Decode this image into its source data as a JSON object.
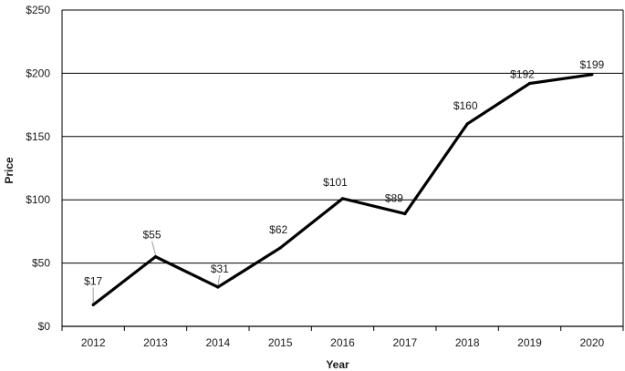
{
  "chart_data": {
    "type": "line",
    "title": "",
    "xlabel": "Year",
    "ylabel": "Price",
    "categories": [
      "2012",
      "2013",
      "2014",
      "2015",
      "2016",
      "2017",
      "2018",
      "2019",
      "2020"
    ],
    "series": [
      {
        "values": [
          17,
          55,
          31,
          62,
          101,
          89,
          160,
          192,
          199
        ],
        "data_labels": [
          "$17",
          "$55",
          "$31",
          "$62",
          "$101",
          "$89",
          "$160",
          "$192",
          "$199"
        ],
        "color": "#000000"
      }
    ],
    "ylim": [
      0,
      250
    ],
    "yticks": [
      0,
      50,
      100,
      150,
      200,
      250
    ],
    "ytick_labels": [
      "$0",
      "$50",
      "$100",
      "$150",
      "$200",
      "$250"
    ],
    "grid": "horizontal",
    "legend": "none"
  }
}
